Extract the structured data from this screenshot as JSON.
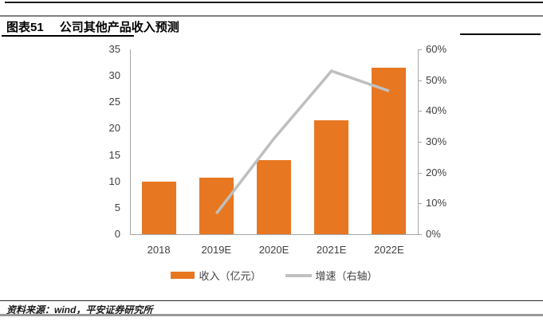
{
  "page": {
    "title_label": "图表51",
    "title_text": "公司其他产品收入预测",
    "source_text": "资料来源：wind，平安证券研究所"
  },
  "chart_data": {
    "type": "bar",
    "subtype": "bar-line-combo",
    "title": "公司其他产品收入预测",
    "categories": [
      "2018",
      "2019E",
      "2020E",
      "2021E",
      "2022E"
    ],
    "series": [
      {
        "name": "收入（亿元）",
        "type": "bar",
        "axis": "left",
        "color": "#e87722",
        "values": [
          10,
          10.7,
          14,
          21.5,
          31.5
        ]
      },
      {
        "name": "增速（右轴）",
        "type": "line",
        "axis": "right",
        "color": "#bfbfbf",
        "values": [
          null,
          6.7,
          31,
          53,
          46.5
        ]
      }
    ],
    "left_axis": {
      "lim": [
        0,
        35
      ],
      "ticks": [
        "35",
        "30",
        "25",
        "20",
        "15",
        "10",
        "5",
        "0"
      ]
    },
    "right_axis": {
      "lim": [
        0,
        60
      ],
      "ticks": [
        "60%",
        "50%",
        "40%",
        "30%",
        "20%",
        "10%",
        "0%"
      ]
    },
    "grid": false,
    "legend_position": "bottom"
  }
}
